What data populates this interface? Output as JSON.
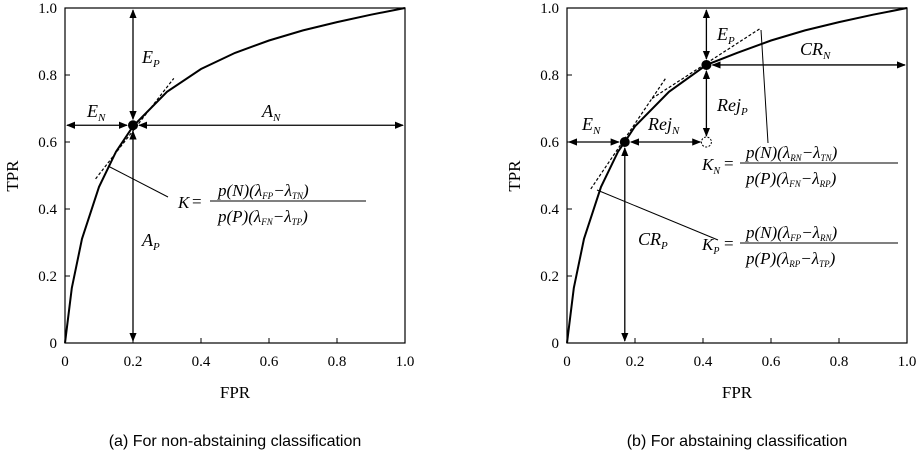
{
  "chart_data": [
    {
      "type": "line",
      "caption": "(a) For non-abstaining classification",
      "xlabel": "FPR",
      "ylabel": "TPR",
      "xlim": [
        0,
        1
      ],
      "ylim": [
        0,
        1
      ],
      "xticks": [
        "0",
        "0.2",
        "0.4",
        "0.6",
        "0.8",
        "1.0"
      ],
      "yticks": [
        "0",
        "0.2",
        "0.4",
        "0.6",
        "0.8",
        "1.0"
      ],
      "grid": false,
      "curve": {
        "x": [
          0,
          0.02,
          0.05,
          0.1,
          0.15,
          0.2,
          0.3,
          0.4,
          0.5,
          0.6,
          0.7,
          0.8,
          0.9,
          1.0
        ],
        "y": [
          0,
          0.164,
          0.311,
          0.466,
          0.571,
          0.647,
          0.75,
          0.818,
          0.866,
          0.903,
          0.933,
          0.958,
          0.98,
          1.0
        ]
      },
      "operating_point": {
        "x": 0.2,
        "y": 0.65
      },
      "tangent": {
        "x": [
          0.09,
          0.32
        ],
        "y": [
          0.49,
          0.79
        ]
      },
      "labels": {
        "E_P": "E",
        "E_P_sub": "P",
        "E_N": "E",
        "E_N_sub": "N",
        "A_N": "A",
        "A_N_sub": "N",
        "A_P": "A",
        "A_P_sub": "P"
      },
      "formula": {
        "lhs": "K",
        "eq": "=",
        "num": "p(N)(λ_FP−λ_TN)",
        "den": "p(P)(λ_FN−λ_TP)",
        "num_parts": [
          "p(N)(λ",
          "FP",
          "−λ",
          "TN",
          ")"
        ],
        "den_parts": [
          "p(P)(λ",
          "FN",
          "−λ",
          "TP",
          ")"
        ]
      }
    },
    {
      "type": "line",
      "caption": "(b) For abstaining classification",
      "xlabel": "FPR",
      "ylabel": "TPR",
      "xlim": [
        0,
        1
      ],
      "ylim": [
        0,
        1
      ],
      "xticks": [
        "0",
        "0.2",
        "0.4",
        "0.6",
        "0.8",
        "1.0"
      ],
      "yticks": [
        "0",
        "0.2",
        "0.4",
        "0.6",
        "0.8",
        "1.0"
      ],
      "grid": false,
      "curve": {
        "x": [
          0,
          0.02,
          0.05,
          0.1,
          0.15,
          0.17,
          0.2,
          0.3,
          0.41,
          0.5,
          0.6,
          0.7,
          0.8,
          0.9,
          1.0
        ],
        "y": [
          0,
          0.164,
          0.311,
          0.466,
          0.571,
          0.6,
          0.647,
          0.75,
          0.83,
          0.866,
          0.903,
          0.933,
          0.958,
          0.98,
          1.0
        ]
      },
      "points": [
        {
          "x": 0.17,
          "y": 0.6,
          "style": "filled"
        },
        {
          "x": 0.41,
          "y": 0.83,
          "style": "filled"
        },
        {
          "x": 0.41,
          "y": 0.6,
          "style": "dashed"
        }
      ],
      "tangents": [
        {
          "x": [
            0.07,
            0.29
          ],
          "y": [
            0.46,
            0.79
          ]
        },
        {
          "x": [
            0.25,
            0.57
          ],
          "y": [
            0.73,
            0.94
          ]
        }
      ],
      "labels": {
        "E_P": "E",
        "E_P_sub": "P",
        "E_N": "E",
        "E_N_sub": "N",
        "CR_N": "CR",
        "CR_N_sub": "N",
        "CR_P": "CR",
        "CR_P_sub": "P",
        "Rej_P": "Rej",
        "Rej_P_sub": "P",
        "Rej_N": "Rej",
        "Rej_N_sub": "N"
      },
      "formula_N": {
        "lhs": "K",
        "lhs_sub": "N",
        "eq": "=",
        "num_parts": [
          "p(N)(λ",
          "RN",
          "−λ",
          "TN",
          ")"
        ],
        "den_parts": [
          "p(P)(λ",
          "FN",
          "−λ",
          "RP",
          ")"
        ]
      },
      "formula_P": {
        "lhs": "K",
        "lhs_sub": "P",
        "eq": "=",
        "num_parts": [
          "p(N)(λ",
          "FP",
          "−λ",
          "RN",
          ")"
        ],
        "den_parts": [
          "p(P)(λ",
          "RP",
          "−λ",
          "TP",
          ")"
        ]
      }
    }
  ]
}
